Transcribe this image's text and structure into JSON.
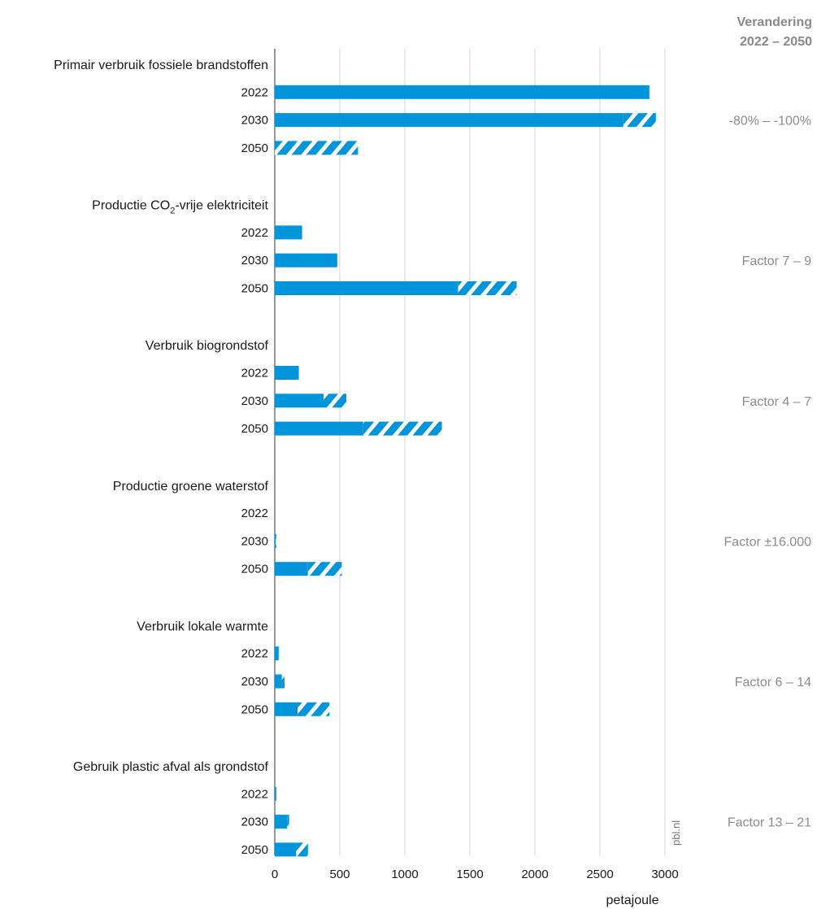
{
  "change_header": {
    "line1": "Verandering",
    "line2": "2022 – 2050"
  },
  "watermark": "pbl.nl",
  "chart_data": {
    "type": "bar",
    "orientation": "horizontal",
    "xlabel": "petajoule",
    "xlim": [
      0,
      3000
    ],
    "xticks": [
      0,
      500,
      1000,
      1500,
      2000,
      2500,
      3000
    ],
    "grid": true,
    "bar_color": "#0095db",
    "legend": "none",
    "series": [
      {
        "values": []
      },
      {
        "values": []
      }
    ],
    "groups": [
      {
        "label": "Primair verbruik fossiele brandstoffen",
        "change": "-80% – -100%",
        "bars": [
          {
            "year": "2022",
            "value": 2880,
            "range_max": 2880
          },
          {
            "year": "2030",
            "value": 2680,
            "range_max": 2930
          },
          {
            "year": "2050",
            "value": 0,
            "range_max": 640
          }
        ]
      },
      {
        "label_main": "Productie CO",
        "label_sub": "2",
        "label_rest": "-vrije elektriciteit",
        "change": "Factor 7 – 9",
        "bars": [
          {
            "year": "2022",
            "value": 210,
            "range_max": 210
          },
          {
            "year": "2030",
            "value": 480,
            "range_max": 480
          },
          {
            "year": "2050",
            "value": 1410,
            "range_max": 1860
          }
        ]
      },
      {
        "label": "Verbruik biogrondstof",
        "change": "Factor 4 – 7",
        "bars": [
          {
            "year": "2022",
            "value": 185,
            "range_max": 185
          },
          {
            "year": "2030",
            "value": 375,
            "range_max": 550
          },
          {
            "year": "2050",
            "value": 680,
            "range_max": 1285
          }
        ]
      },
      {
        "label": "Productie groene waterstof",
        "change": "Factor ±16.000",
        "bars": [
          {
            "year": "2022",
            "value": 0,
            "range_max": 0
          },
          {
            "year": "2030",
            "value": 8,
            "range_max": 12
          },
          {
            "year": "2050",
            "value": 255,
            "range_max": 515
          }
        ]
      },
      {
        "label": "Verbruik lokale warmte",
        "change": "Factor 6 – 14",
        "bars": [
          {
            "year": "2022",
            "value": 30,
            "range_max": 30
          },
          {
            "year": "2030",
            "value": 55,
            "range_max": 75
          },
          {
            "year": "2050",
            "value": 175,
            "range_max": 420
          }
        ]
      },
      {
        "label": "Gebruik plastic afval als grondstof",
        "change": "Factor 13 – 21",
        "bars": [
          {
            "year": "2022",
            "value": 12,
            "range_max": 12
          },
          {
            "year": "2030",
            "value": 95,
            "range_max": 110
          },
          {
            "year": "2050",
            "value": 165,
            "range_max": 255
          }
        ]
      }
    ]
  }
}
